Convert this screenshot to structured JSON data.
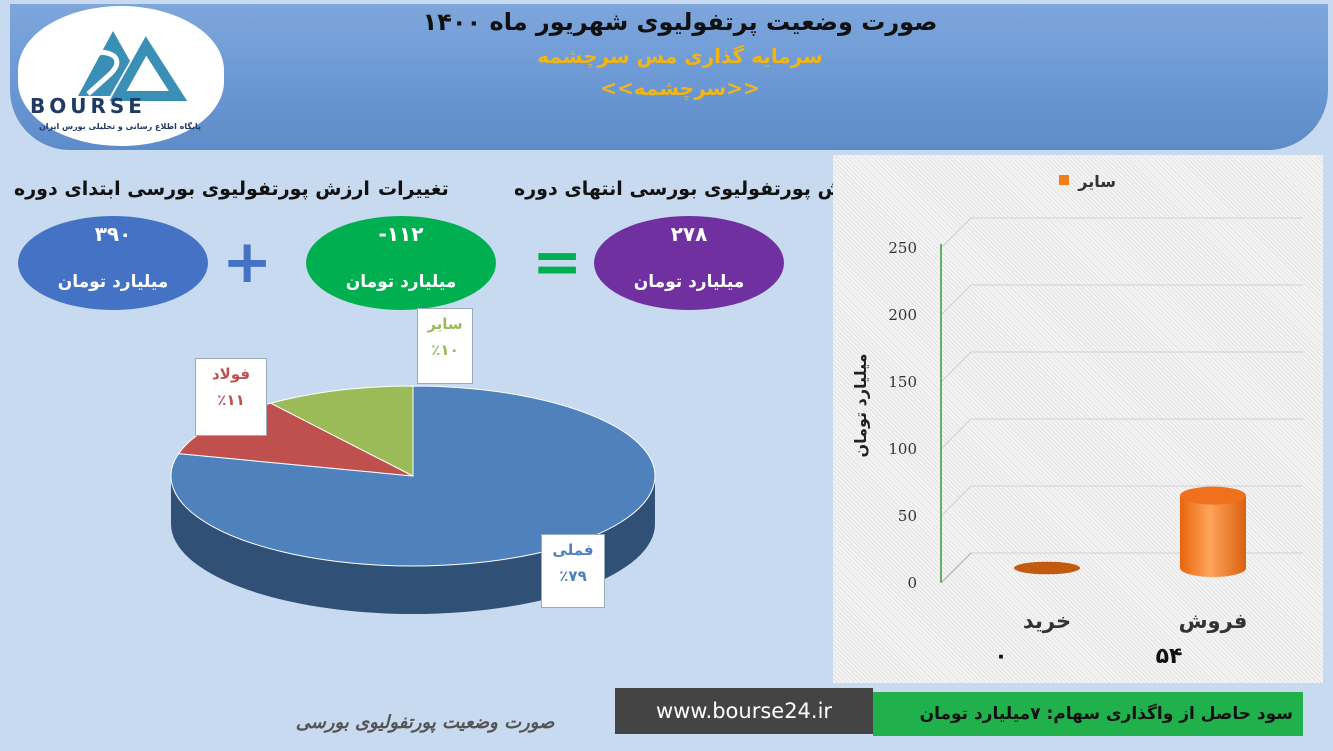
{
  "header": {
    "title": "صورت وضعیت پرتفولیوی شهریور ماه ۱۴۰۰",
    "subtitle": "سرمایه گذاری مس سرچشمه",
    "symbol": "<<سرچشمه>>",
    "logo_text": "BOURSE",
    "logo_sub": "پایگاه اطلاع رسانی و تحلیلی بورس ایران"
  },
  "summary": {
    "start": {
      "label": "ارزش پورتفولیوی بورسی ابتدای دوره",
      "value": "۳۹۰",
      "unit": "میلیارد تومان",
      "color": "#4472c4"
    },
    "change": {
      "label": "تغییرات",
      "value": "-۱۱۲",
      "unit": "میلیارد تومان",
      "color": "#00b050"
    },
    "end": {
      "label": "ارزش پورتفولیوی بورسی انتهای دوره",
      "value": "۲۷۸",
      "unit": "میلیارد تومان",
      "color": "#7030a0"
    },
    "plus_symbol": "+",
    "equals_symbol": "="
  },
  "chart_data": [
    {
      "type": "pie",
      "categories": [
        "فملی",
        "فولاد",
        "سایر"
      ],
      "values": [
        79,
        11,
        10
      ],
      "value_labels": [
        "٪۷۹",
        "٪۱۱",
        "٪۱۰"
      ],
      "colors": [
        "#4f81bd",
        "#c0504d",
        "#9bbb59"
      ]
    },
    {
      "type": "bar",
      "categories": [
        "خرید",
        "فروش"
      ],
      "series": [
        {
          "name": "سایر",
          "values": [
            0,
            54
          ]
        }
      ],
      "value_labels": [
        "۰",
        "۵۴"
      ],
      "ylim": [
        0,
        250
      ],
      "yticks": [
        0,
        50,
        100,
        150,
        200,
        250
      ],
      "ylabel": "میلیارد تومان",
      "legend": "top-right",
      "color": "#f07f1a"
    }
  ],
  "footer": {
    "watermark": "صورت وضعیت پورتفولیوی بورسی",
    "url": "www.bourse24.ir",
    "profit": "سود حاصل از واگذاری سهام: ۷میلیارد تومان"
  }
}
